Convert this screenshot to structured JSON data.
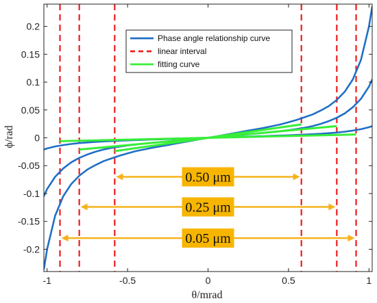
{
  "chart_data": {
    "type": "line",
    "title": "",
    "xlabel": "θ/mrad",
    "ylabel": "ϕ/rad",
    "xlim": [
      -1.02,
      1.02
    ],
    "ylim": [
      -0.24,
      0.24
    ],
    "xticks": [
      -1,
      -0.5,
      0,
      0.5,
      1
    ],
    "xtick_labels": [
      "-1",
      "-0.5",
      "0",
      "0.5",
      "1"
    ],
    "yticks": [
      -0.2,
      -0.15,
      -0.1,
      -0.05,
      0,
      0.05,
      0.1,
      0.15,
      0.2
    ],
    "ytick_labels": [
      "-0.2",
      "-0.15",
      "-0.1",
      "-0.05",
      "0",
      "0.05",
      "0.1",
      "0.15",
      "0.2"
    ],
    "grid": false,
    "legend": {
      "position": "top-right",
      "entries": [
        {
          "label": "Phase angle relationship curve",
          "color": "#1f6fc5",
          "style": "solid"
        },
        {
          "label": "linear interval",
          "color": "#ee1c1c",
          "style": "dashed"
        },
        {
          "label": "fitting curve",
          "color": "#38ee38",
          "style": "solid"
        }
      ]
    },
    "series": [
      {
        "kind": "phase",
        "color": "#1f6fc5",
        "x": [
          -1.02,
          -1.0,
          -0.95,
          -0.9,
          -0.85,
          -0.8,
          -0.75,
          -0.7,
          -0.65,
          -0.6,
          -0.55,
          -0.5,
          -0.45,
          -0.4,
          -0.35,
          -0.3,
          -0.25,
          -0.2,
          -0.15,
          -0.1,
          -0.05,
          0,
          0.05,
          0.1,
          0.15,
          0.2,
          0.25,
          0.3,
          0.35,
          0.4,
          0.45,
          0.5,
          0.55,
          0.6,
          0.65,
          0.7,
          0.75,
          0.8,
          0.85,
          0.9,
          0.95,
          1.0,
          1.02
        ],
        "y": [
          -0.236,
          -0.2,
          -0.14,
          -0.105,
          -0.083,
          -0.068,
          -0.057,
          -0.049,
          -0.042,
          -0.037,
          -0.032,
          -0.028,
          -0.024,
          -0.021,
          -0.018,
          -0.0155,
          -0.013,
          -0.0102,
          -0.0076,
          -0.005,
          -0.0025,
          0,
          0.0025,
          0.005,
          0.0076,
          0.0102,
          0.013,
          0.0155,
          0.018,
          0.021,
          0.024,
          0.028,
          0.032,
          0.037,
          0.042,
          0.049,
          0.057,
          0.068,
          0.083,
          0.105,
          0.14,
          0.2,
          0.236
        ]
      },
      {
        "kind": "phase",
        "color": "#1f6fc5",
        "x": [
          -1.02,
          -1.0,
          -0.95,
          -0.9,
          -0.85,
          -0.8,
          -0.75,
          -0.7,
          -0.65,
          -0.6,
          -0.55,
          -0.5,
          -0.45,
          -0.4,
          -0.35,
          -0.3,
          -0.25,
          -0.2,
          -0.15,
          -0.1,
          -0.05,
          0,
          0.05,
          0.1,
          0.15,
          0.2,
          0.25,
          0.3,
          0.35,
          0.4,
          0.45,
          0.5,
          0.55,
          0.6,
          0.65,
          0.7,
          0.75,
          0.8,
          0.85,
          0.9,
          0.95,
          1.0,
          1.02
        ],
        "y": [
          -0.105,
          -0.092,
          -0.07,
          -0.055,
          -0.044,
          -0.036,
          -0.03,
          -0.025,
          -0.021,
          -0.018,
          -0.0158,
          -0.0138,
          -0.012,
          -0.0104,
          -0.009,
          -0.0077,
          -0.0064,
          -0.0051,
          -0.0038,
          -0.0025,
          -0.0013,
          0,
          0.0013,
          0.0025,
          0.0038,
          0.0051,
          0.0064,
          0.0077,
          0.009,
          0.0104,
          0.012,
          0.0138,
          0.0158,
          0.018,
          0.021,
          0.025,
          0.03,
          0.036,
          0.044,
          0.055,
          0.07,
          0.092,
          0.105
        ]
      },
      {
        "kind": "phase",
        "color": "#1f6fc5",
        "x": [
          -1.02,
          -1.0,
          -0.95,
          -0.9,
          -0.85,
          -0.8,
          -0.75,
          -0.7,
          -0.65,
          -0.6,
          -0.55,
          -0.5,
          -0.45,
          -0.4,
          -0.35,
          -0.3,
          -0.25,
          -0.2,
          -0.15,
          -0.1,
          -0.05,
          0,
          0.05,
          0.1,
          0.15,
          0.2,
          0.25,
          0.3,
          0.35,
          0.4,
          0.45,
          0.5,
          0.55,
          0.6,
          0.65,
          0.7,
          0.75,
          0.8,
          0.85,
          0.9,
          0.95,
          1.0,
          1.02
        ],
        "y": [
          -0.021,
          -0.019,
          -0.0155,
          -0.013,
          -0.011,
          -0.0095,
          -0.0083,
          -0.0073,
          -0.0065,
          -0.0058,
          -0.0052,
          -0.0046,
          -0.0041,
          -0.0036,
          -0.0031,
          -0.0027,
          -0.0022,
          -0.0018,
          -0.0013,
          -0.0009,
          -0.0004,
          0,
          0.0004,
          0.0009,
          0.0013,
          0.0018,
          0.0022,
          0.0027,
          0.0031,
          0.0036,
          0.0041,
          0.0046,
          0.0052,
          0.0058,
          0.0065,
          0.0073,
          0.0083,
          0.0095,
          0.011,
          0.013,
          0.0155,
          0.019,
          0.021
        ]
      },
      {
        "kind": "fit",
        "color": "#38ee38",
        "x": [
          -0.58,
          0.58
        ],
        "y": [
          -0.024,
          0.024
        ]
      },
      {
        "kind": "fit",
        "color": "#38ee38",
        "x": [
          -0.8,
          0.8
        ],
        "y": [
          -0.021,
          0.021
        ]
      },
      {
        "kind": "fit",
        "color": "#38ee38",
        "x": [
          -0.92,
          0.92
        ],
        "y": [
          -0.006,
          0.006
        ]
      }
    ],
    "linear_interval_lines": [
      -0.92,
      -0.8,
      -0.58,
      0.58,
      0.8,
      0.92
    ],
    "interval_labels": [
      {
        "text": "0.50 μm",
        "x_from": -0.58,
        "x_to": 0.58,
        "y": -0.07
      },
      {
        "text": "0.25 μm",
        "x_from": -0.8,
        "x_to": 0.8,
        "y": -0.124
      },
      {
        "text": "0.05 μm",
        "x_from": -0.92,
        "x_to": 0.92,
        "y": -0.18
      }
    ],
    "colors": {
      "phase": "#1f6fc5",
      "linear": "#ee1c1c",
      "fit": "#38ee38",
      "arrow": "#f5b21c",
      "label_bg": "#f7b500"
    }
  }
}
